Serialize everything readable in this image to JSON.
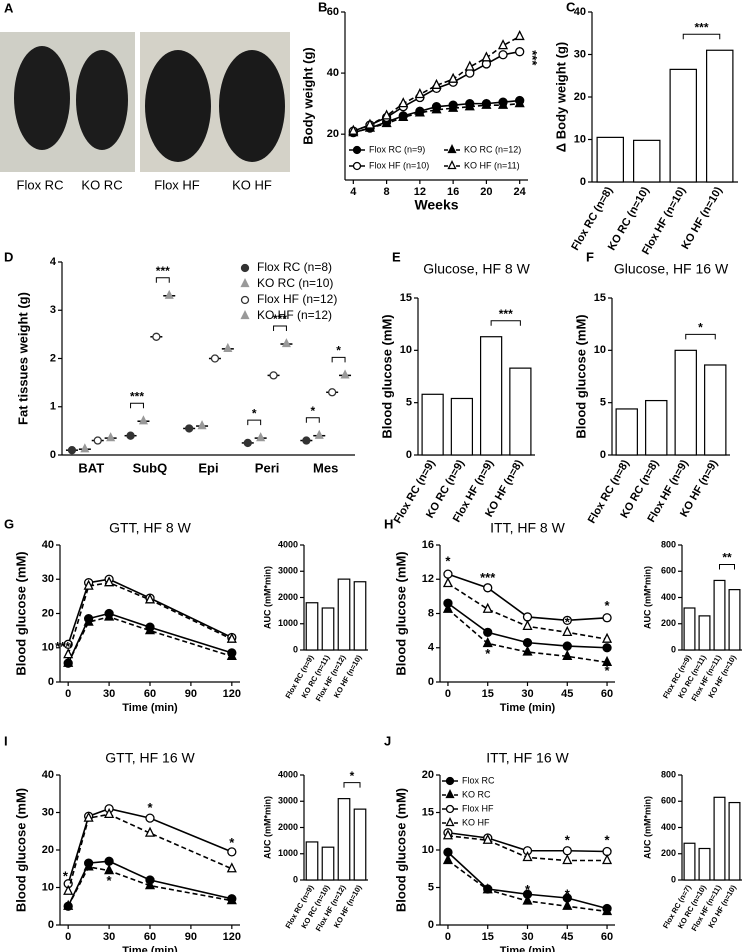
{
  "photo": {
    "panel": "A",
    "labels": [
      "Flox RC",
      "KO RC",
      "Flox HF",
      "KO HF"
    ]
  },
  "chart_data": [
    {
      "panel": "B",
      "type": "line",
      "ylabel": "Body weight (g)",
      "xlabel": "Weeks",
      "x": [
        4,
        6,
        8,
        10,
        12,
        14,
        16,
        18,
        20,
        22,
        24
      ],
      "xlim": [
        3,
        25
      ],
      "xticks": [
        4,
        8,
        12,
        16,
        20,
        24
      ],
      "ylim": [
        5,
        60
      ],
      "yticks": [
        20,
        40,
        60
      ],
      "legend": "lower-center",
      "annotations": [
        "***"
      ],
      "series": [
        {
          "name": "Flox RC (n=9)",
          "color": "#000000",
          "marker": "filled-circle",
          "line_style": "solid",
          "values": [
            20.5,
            22,
            24,
            26,
            27.5,
            29,
            29.5,
            30,
            30,
            30.5,
            31
          ]
        },
        {
          "name": "KO RC (n=12)",
          "color": "#000000",
          "marker": "filled-triangle",
          "line_style": "dashed",
          "values": [
            20.5,
            22,
            23.5,
            25.5,
            27,
            28,
            28.5,
            29,
            29.5,
            29.5,
            30
          ]
        },
        {
          "name": "Flox HF (n=10)",
          "color": "#000000",
          "marker": "open-circle",
          "line_style": "solid",
          "values": [
            21,
            23,
            25.5,
            29,
            32,
            35,
            37,
            40,
            43,
            46,
            47
          ]
        },
        {
          "name": "KO HF (n=11)",
          "color": "#000000",
          "marker": "open-triangle",
          "line_style": "dashed",
          "values": [
            21,
            23,
            26,
            30,
            33,
            36,
            38,
            42,
            45,
            49,
            52
          ]
        }
      ]
    },
    {
      "panel": "C",
      "type": "bar",
      "ylabel": "Δ Body weight (g)",
      "categories": [
        "Flox RC (n=8)",
        "KO RC (n=10)",
        "Flox HF (n=10)",
        "KO HF (n=10)"
      ],
      "values": [
        10.5,
        9.8,
        26.5,
        31
      ],
      "ylim": [
        0,
        40
      ],
      "yticks": [
        0,
        10,
        20,
        30,
        40
      ],
      "color": "#000000",
      "annotations": [
        "***"
      ]
    },
    {
      "panel": "D",
      "type": "dot",
      "ylabel": "Fat tissues weight (g)",
      "categories": [
        "BAT",
        "SubQ",
        "Epi",
        "Peri",
        "Mes"
      ],
      "ylim": [
        0,
        4
      ],
      "yticks": [
        0,
        1,
        2,
        3,
        4
      ],
      "legend": "upper-right",
      "annotations": [
        "***",
        "***",
        "*",
        "***",
        "*",
        "*"
      ],
      "series": [
        {
          "name": "Flox RC (n=8)",
          "color": "#333333",
          "marker": "filled-circle",
          "values": [
            0.1,
            0.4,
            0.55,
            0.25,
            0.3
          ]
        },
        {
          "name": "KO RC (n=10)",
          "color": "#999999",
          "marker": "filled-triangle",
          "values": [
            0.12,
            0.7,
            0.6,
            0.35,
            0.4
          ]
        },
        {
          "name": "Flox HF (n=12)",
          "color": "#333333",
          "marker": "open-circle",
          "values": [
            0.3,
            2.45,
            2.0,
            1.65,
            1.3
          ]
        },
        {
          "name": "KO HF (n=12)",
          "color": "#999999",
          "marker": "filled-triangle",
          "values": [
            0.35,
            3.3,
            2.2,
            2.3,
            1.65
          ]
        }
      ]
    },
    {
      "panel": "E",
      "type": "bar",
      "title": "Glucose, HF 8 W",
      "ylabel": "Blood glucose (mM)",
      "categories": [
        "Flox RC (n=9)",
        "KO RC (n=9)",
        "Flox HF (n=9)",
        "KO HF (n=8)"
      ],
      "values": [
        5.8,
        5.4,
        11.3,
        8.3
      ],
      "ylim": [
        0,
        15
      ],
      "yticks": [
        0,
        5,
        10,
        15
      ],
      "color": "#000000",
      "annotations": [
        "***"
      ]
    },
    {
      "panel": "F",
      "type": "bar",
      "title": "Glucose, HF 16 W",
      "ylabel": "Blood glucose (mM)",
      "categories": [
        "Flox RC (n=8)",
        "KO RC (n=8)",
        "Flox HF (n=9)",
        "KO HF (n=9)"
      ],
      "values": [
        4.4,
        5.2,
        10,
        8.6
      ],
      "ylim": [
        0,
        15
      ],
      "yticks": [
        0,
        5,
        10,
        15
      ],
      "color": "#000000",
      "annotations": [
        "*"
      ]
    },
    {
      "panel": "G",
      "type": "line",
      "title": "GTT, HF 8 W",
      "ylabel": "Blood glucose (mM)",
      "xlabel": "Time (min)",
      "x": [
        0,
        15,
        30,
        60,
        120
      ],
      "xlim": [
        -6,
        126
      ],
      "xticks": [
        0,
        30,
        60,
        90,
        120
      ],
      "ylim": [
        0,
        40
      ],
      "yticks": [
        0,
        10,
        20,
        30,
        40
      ],
      "annotations": [
        "***"
      ],
      "series": [
        {
          "color": "#000000",
          "marker": "filled-circle",
          "line_style": "solid",
          "values": [
            5.5,
            18.5,
            20,
            16,
            8.5
          ]
        },
        {
          "color": "#000000",
          "marker": "filled-triangle",
          "line_style": "dashed",
          "values": [
            5.5,
            17.5,
            19,
            15,
            7.5
          ]
        },
        {
          "color": "#000000",
          "marker": "open-circle",
          "line_style": "solid",
          "values": [
            11,
            29,
            30,
            24.5,
            13
          ]
        },
        {
          "color": "#000000",
          "marker": "open-triangle",
          "line_style": "dashed",
          "values": [
            8,
            28,
            29,
            24,
            12.5
          ]
        }
      ]
    },
    {
      "type": "bar",
      "ylabel": "AUC (mM*min)",
      "categories": [
        "Flox RC (n=9)",
        "KO RC (n=11)",
        "Flox HF (n=12)",
        "KO HF (n=10)"
      ],
      "values": [
        1800,
        1600,
        2700,
        2600
      ],
      "ylim": [
        0,
        4000
      ],
      "yticks": [
        0,
        1000,
        2000,
        3000,
        4000
      ],
      "color": "#000000"
    },
    {
      "panel": "H",
      "type": "line",
      "title": "ITT, HF 8 W",
      "ylabel": "Blood glucose (mM)",
      "xlabel": "Time (min)",
      "x": [
        0,
        15,
        30,
        45,
        60
      ],
      "xlim": [
        -3,
        63
      ],
      "xticks": [
        0,
        15,
        30,
        45,
        60
      ],
      "ylim": [
        0,
        16
      ],
      "yticks": [
        0,
        4,
        8,
        12,
        16
      ],
      "annotations": [
        "*",
        "***",
        "*",
        "*",
        "*",
        "*"
      ],
      "series": [
        {
          "color": "#000000",
          "marker": "filled-circle",
          "line_style": "solid",
          "values": [
            9.2,
            5.8,
            4.6,
            4.2,
            4
          ]
        },
        {
          "color": "#000000",
          "marker": "filled-triangle",
          "line_style": "dashed",
          "values": [
            8.5,
            4.5,
            3.5,
            3,
            2.3
          ]
        },
        {
          "color": "#000000",
          "marker": "open-circle",
          "line_style": "solid",
          "values": [
            12.6,
            11,
            7.6,
            7.2,
            7.5
          ]
        },
        {
          "color": "#000000",
          "marker": "open-triangle",
          "line_style": "dashed",
          "values": [
            11.5,
            8.5,
            6.5,
            5.8,
            5
          ]
        }
      ]
    },
    {
      "type": "bar",
      "ylabel": "AUC (mM*min)",
      "categories": [
        "Flox RC (n=9)",
        "KO RC (n=11)",
        "Flox HF (n=11)",
        "KO HF (n=10)"
      ],
      "values": [
        320,
        260,
        530,
        460
      ],
      "ylim": [
        0,
        800
      ],
      "yticks": [
        0,
        200,
        400,
        600,
        800
      ],
      "color": "#000000",
      "annotations": [
        "**"
      ]
    },
    {
      "panel": "I",
      "type": "line",
      "title": "GTT, HF 16 W",
      "ylabel": "Blood glucose (mM)",
      "xlabel": "Time (min)",
      "x": [
        0,
        15,
        30,
        60,
        120
      ],
      "xlim": [
        -6,
        126
      ],
      "xticks": [
        0,
        30,
        60,
        90,
        120
      ],
      "ylim": [
        0,
        40
      ],
      "yticks": [
        0,
        10,
        20,
        30,
        40
      ],
      "annotations": [
        "*",
        "*",
        "*",
        "*"
      ],
      "series": [
        {
          "color": "#000000",
          "marker": "filled-circle",
          "line_style": "solid",
          "values": [
            5,
            16.5,
            17,
            12,
            7
          ]
        },
        {
          "color": "#000000",
          "marker": "filled-triangle",
          "line_style": "dashed",
          "values": [
            5,
            15.5,
            14.5,
            10.5,
            6.5
          ]
        },
        {
          "color": "#000000",
          "marker": "open-circle",
          "line_style": "solid",
          "values": [
            11,
            29,
            31,
            28.5,
            19.5
          ]
        },
        {
          "color": "#000000",
          "marker": "open-triangle",
          "line_style": "dashed",
          "values": [
            9,
            28.5,
            29.5,
            24.5,
            15
          ]
        }
      ]
    },
    {
      "type": "bar",
      "ylabel": "AUC (mM*min)",
      "categories": [
        "Flox RC (n=9)",
        "KO RC (n=10)",
        "Flox HF (n=12)",
        "KO HF (n=10)"
      ],
      "values": [
        1450,
        1250,
        3100,
        2700
      ],
      "ylim": [
        0,
        4000
      ],
      "yticks": [
        0,
        1000,
        2000,
        3000,
        4000
      ],
      "color": "#000000",
      "annotations": [
        "*"
      ]
    },
    {
      "panel": "J",
      "type": "line",
      "title": "ITT, HF 16 W",
      "ylabel": "Blood glucose (mM)",
      "xlabel": "Time (min)",
      "x": [
        0,
        15,
        30,
        45,
        60
      ],
      "xlim": [
        -3,
        63
      ],
      "xticks": [
        0,
        15,
        30,
        45,
        60
      ],
      "ylim": [
        0,
        20
      ],
      "yticks": [
        0,
        5,
        10,
        15,
        20
      ],
      "legend": "upper-left",
      "annotations": [
        "*",
        "*",
        "*",
        "*"
      ],
      "series": [
        {
          "name": "Flox RC",
          "color": "#000000",
          "marker": "filled-circle",
          "line_style": "solid",
          "values": [
            9.7,
            4.8,
            4.1,
            3.6,
            2.2
          ]
        },
        {
          "name": "KO RC",
          "color": "#000000",
          "marker": "filled-triangle",
          "line_style": "dashed",
          "values": [
            8.6,
            4.7,
            3.2,
            2.5,
            1.8
          ]
        },
        {
          "name": "Flox HF",
          "color": "#000000",
          "marker": "open-circle",
          "line_style": "solid",
          "values": [
            12.3,
            11.6,
            9.9,
            9.9,
            9.8
          ]
        },
        {
          "name": "KO HF",
          "color": "#000000",
          "marker": "open-triangle",
          "line_style": "dashed",
          "values": [
            11.9,
            11.3,
            9,
            8.6,
            8.6
          ]
        }
      ]
    },
    {
      "type": "bar",
      "ylabel": "AUC (mM*min)",
      "categories": [
        "Flox RC (n=7)",
        "KO RC (n=10)",
        "Flox HF (n=11)",
        "KO HF (n=10)"
      ],
      "values": [
        280,
        240,
        630,
        590
      ],
      "ylim": [
        0,
        800
      ],
      "yticks": [
        0,
        200,
        400,
        600,
        800
      ],
      "color": "#000000"
    }
  ]
}
